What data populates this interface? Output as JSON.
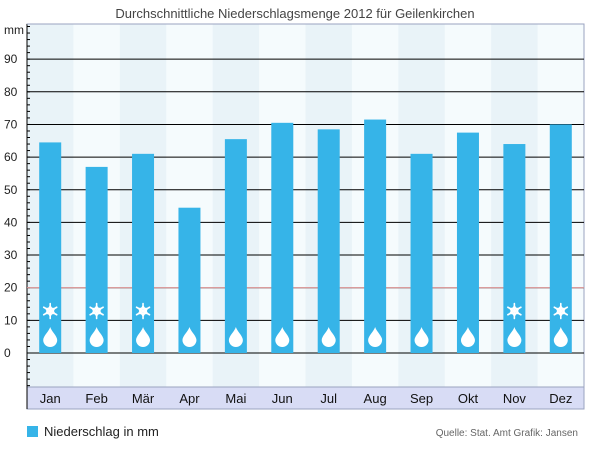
{
  "chart_data": {
    "type": "bar",
    "title": "Durchschnittliche Niederschlagsmenge 2012 für Geilenkirchen",
    "ylabel": "mm",
    "ylim": [
      0,
      100
    ],
    "yticks": [
      0,
      10,
      20,
      30,
      40,
      50,
      60,
      70,
      80,
      90
    ],
    "categories": [
      "Jan",
      "Feb",
      "Mär",
      "Apr",
      "Mai",
      "Jun",
      "Jul",
      "Aug",
      "Sep",
      "Okt",
      "Nov",
      "Dez"
    ],
    "series": [
      {
        "name": "Niederschlag in mm",
        "values": [
          64.5,
          57,
          61,
          44.5,
          65.5,
          70.5,
          68.5,
          71.5,
          61,
          67.5,
          64,
          70
        ]
      }
    ],
    "reference_line": 20,
    "snow_months": [
      "Jan",
      "Feb",
      "Mär",
      "Nov",
      "Dez"
    ],
    "grid": true,
    "legend_position": "bottom-left"
  },
  "colors": {
    "bar": "#36b4e8",
    "plot_background": "#f5fbfd",
    "grid": "#000000",
    "reference_line": "#e8a0a0",
    "axis_band": "#d8dcf5"
  },
  "icons": {
    "rain": "raindrop-icon",
    "snow": "snowflake-icon"
  },
  "legend": {
    "label": "Niederschlag in mm"
  },
  "credits": "Quelle: Stat. Amt  Grafik: Jansen"
}
